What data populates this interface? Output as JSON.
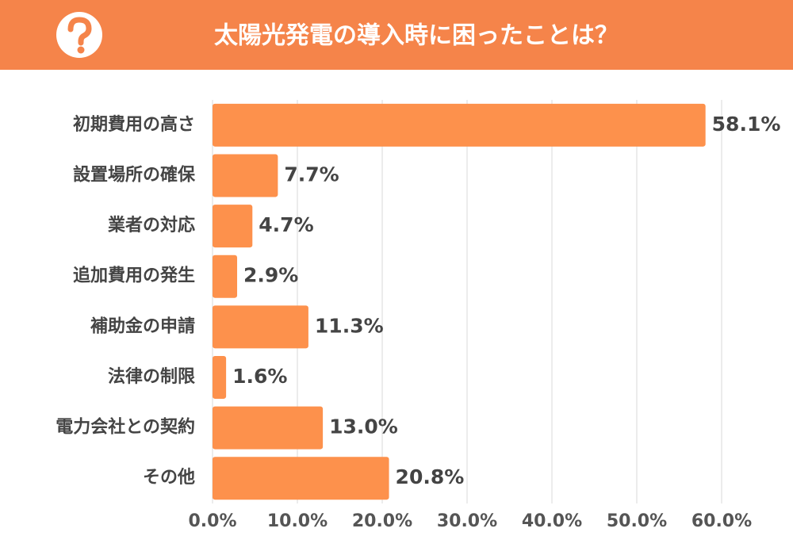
{
  "chart_data": {
    "type": "bar",
    "orientation": "horizontal",
    "title": "太陽光発電の導入時に困ったことは？",
    "categories": [
      "初期費用の高さ",
      "設置場所の確保",
      "業者の対応",
      "追加費用の発生",
      "補助金の申請",
      "法律の制限",
      "電力会社との契約",
      "その他"
    ],
    "values": [
      58.1,
      7.7,
      4.7,
      2.9,
      11.3,
      1.6,
      13.0,
      20.8
    ],
    "value_labels": [
      "58.1%",
      "7.7%",
      "4.7%",
      "2.9%",
      "11.3%",
      "1.6%",
      "13.0%",
      "20.8%"
    ],
    "color": "#fd914c",
    "xlim": [
      0,
      60
    ],
    "xticks": [
      {
        "value": 0,
        "label": "0.0%"
      },
      {
        "value": 10,
        "label": "10.0%"
      },
      {
        "value": 20,
        "label": "20.0%"
      },
      {
        "value": 30,
        "label": "30.0%"
      },
      {
        "value": 40,
        "label": "40.0%"
      },
      {
        "value": 50,
        "label": "50.0%"
      },
      {
        "value": 60,
        "label": "60.0%"
      }
    ],
    "grid": true
  }
}
